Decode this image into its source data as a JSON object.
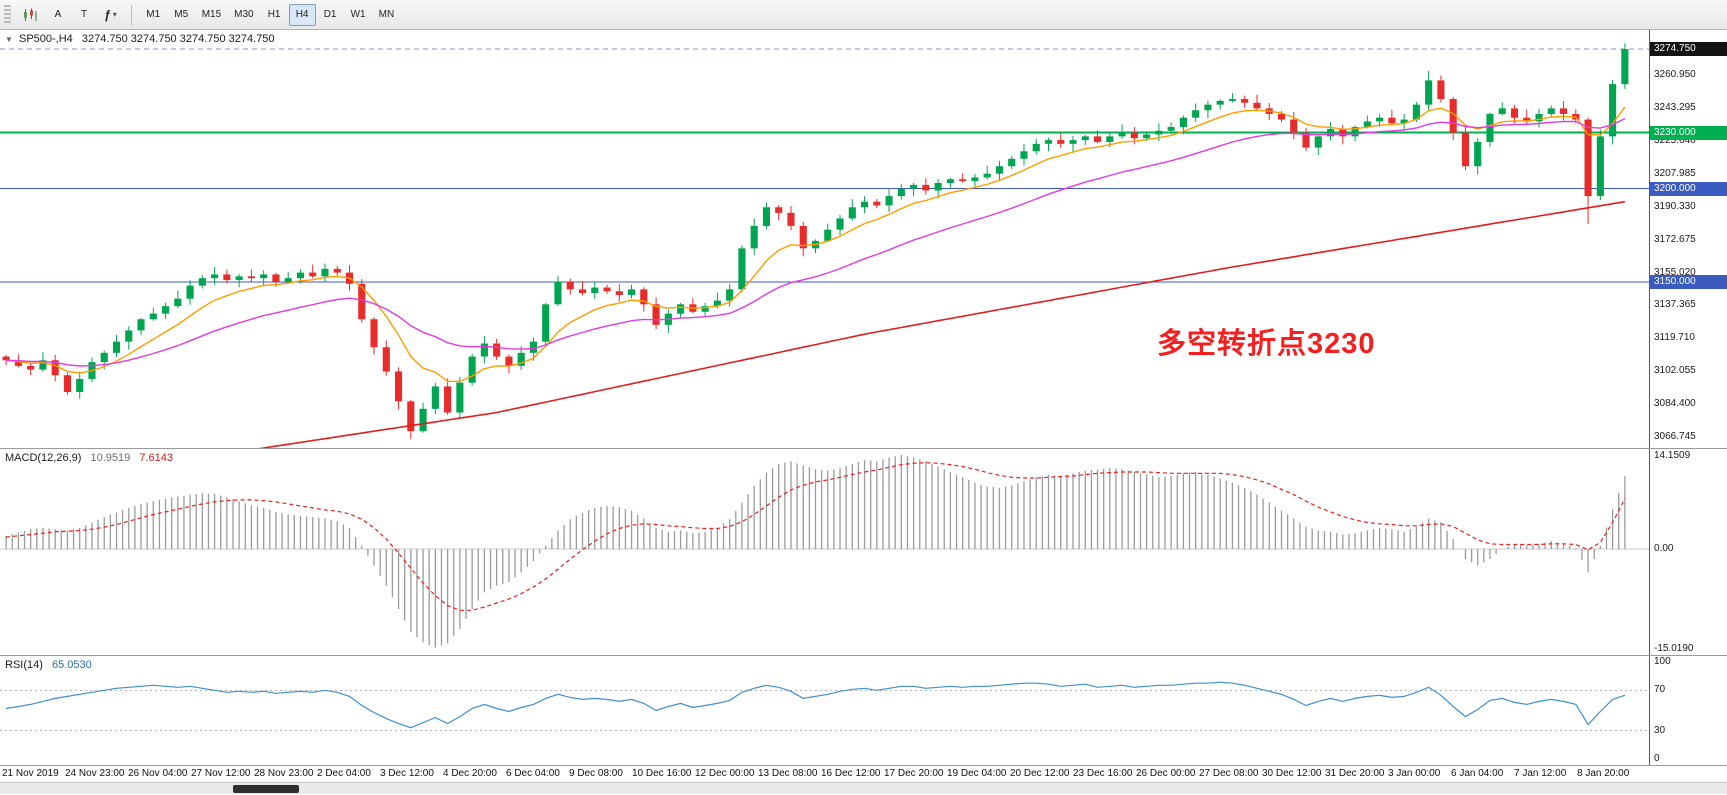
{
  "toolbar": {
    "buttons": {
      "a_tool": "A",
      "t_tool": "T",
      "indicators_glyph": "ƒ",
      "dropdown_glyph": "▾"
    },
    "timeframes": [
      "M1",
      "M5",
      "M15",
      "M30",
      "H1",
      "H4",
      "D1",
      "W1",
      "MN"
    ],
    "active_timeframe": "H4"
  },
  "header": {
    "collapse_glyph": "▼",
    "symbol": "SP500-,H4",
    "ohlc": "3274.750 3274.750 3274.750 3274.750"
  },
  "annotation": {
    "text": "多空转折点3230",
    "color": "#f22020"
  },
  "price_axis": {
    "ticks": [
      "3260.950",
      "3243.295",
      "3225.640",
      "3207.985",
      "3190.330",
      "3172.675",
      "3155.020",
      "3137.365",
      "3119.710",
      "3102.055",
      "3084.400",
      "3066.745"
    ],
    "tags": [
      {
        "label": "3274.750",
        "value": 3274.75,
        "bg": "#141414",
        "line": "#7c97b8",
        "dash": true,
        "width": 1
      },
      {
        "label": "3230.000",
        "value": 3230,
        "bg": "#00b050",
        "line": "#00b050",
        "dash": false,
        "width": 2
      },
      {
        "label": "3200.000",
        "value": 3200,
        "bg": "#3c5bc0",
        "line": "#3c5bc0",
        "dash": false,
        "width": 1
      },
      {
        "label": "3150.000",
        "value": 3150,
        "bg": "#3c5bc0",
        "line": "#3c5bc0",
        "dash": false,
        "width": 1
      }
    ]
  },
  "macd_panel": {
    "name": "MACD(12,26,9)",
    "value_main": "10.9519",
    "value_signal": "7.6143",
    "axis": [
      {
        "label": "14.1509",
        "value": 14.1509
      },
      {
        "label": "0.00",
        "value": 0
      },
      {
        "label": "-15.0190",
        "value": -15.019
      }
    ]
  },
  "rsi_panel": {
    "name": "RSI(14)",
    "value": "65.0530",
    "axis": [
      {
        "label": "100",
        "value": 100
      },
      {
        "label": "70",
        "value": 70
      },
      {
        "label": "30",
        "value": 30
      },
      {
        "label": "0",
        "value": 0
      }
    ],
    "levels": [
      70,
      30
    ]
  },
  "time_axis": [
    "21 Nov 2019",
    "24 Nov 23:00",
    "26 Nov 04:00",
    "27 Nov 12:00",
    "28 Nov 23:00",
    "2 Dec 04:00",
    "3 Dec 12:00",
    "4 Dec 20:00",
    "6 Dec 04:00",
    "9 Dec 08:00",
    "10 Dec 16:00",
    "12 Dec 00:00",
    "13 Dec 08:00",
    "16 Dec 12:00",
    "17 Dec 20:00",
    "19 Dec 04:00",
    "20 Dec 12:00",
    "23 Dec 16:00",
    "26 Dec 00:00",
    "27 Dec 08:00",
    "30 Dec 12:00",
    "31 Dec 20:00",
    "3 Jan 00:00",
    "6 Jan 04:00",
    "7 Jan 12:00",
    "8 Jan 20:00"
  ],
  "scrollbar": {
    "thumb_left": 233,
    "thumb_width": 66
  },
  "chart_data": [
    {
      "type": "candlestick",
      "name": "SP500- H4 price",
      "ylim": [
        3061,
        3285
      ],
      "first_open": 3110,
      "closes": [
        3108,
        3105,
        3103,
        3108,
        3100,
        3091,
        3098,
        3107,
        3112,
        3118,
        3124,
        3130,
        3133,
        3137,
        3141,
        3148,
        3152,
        3154,
        3151,
        3153,
        3152,
        3154,
        3150,
        3152,
        3155,
        3153,
        3157,
        3155,
        3149,
        3130,
        3115,
        3102,
        3086,
        3070,
        3082,
        3094,
        3080,
        3096,
        3110,
        3117,
        3110,
        3105,
        3112,
        3118,
        3138,
        3150,
        3146,
        3144,
        3147,
        3145,
        3143,
        3146,
        3138,
        3127,
        3133,
        3138,
        3134,
        3137,
        3140,
        3146,
        3168,
        3180,
        3190,
        3187,
        3180,
        3168,
        3172,
        3178,
        3184,
        3190,
        3193,
        3191,
        3196,
        3200,
        3202,
        3199,
        3203,
        3205,
        3204,
        3206,
        3208,
        3212,
        3216,
        3220,
        3224,
        3226,
        3224,
        3226,
        3228,
        3225,
        3228,
        3230,
        3227,
        3229,
        3231,
        3233,
        3238,
        3242,
        3245,
        3247,
        3248,
        3246,
        3243,
        3240,
        3237,
        3230,
        3222,
        3228,
        3232,
        3228,
        3233,
        3236,
        3238,
        3235,
        3237,
        3245,
        3258,
        3248,
        3230,
        3212,
        3225,
        3240,
        3243,
        3238,
        3236,
        3240,
        3243,
        3240,
        3237,
        3196,
        3228,
        3256,
        3274.75
      ],
      "low_overrides": {
        "33": 3065.7,
        "129": 3181
      },
      "high_overrides": {
        "116": 3263,
        "132": 3277.8
      },
      "up_color": "#00a551",
      "down_color": "#e82b2b",
      "ma_fast": {
        "color": "#ff9d00",
        "period": 8
      },
      "ma_mid": {
        "color": "#e03ce0",
        "period": 24
      },
      "ma_slow": {
        "color": "#dd1f1f",
        "points": [
          [
            16,
            3056
          ],
          [
            40,
            3080
          ],
          [
            70,
            3122
          ],
          [
            100,
            3158
          ],
          [
            132,
            3193
          ]
        ]
      },
      "levels": [
        3230,
        3200,
        3150
      ],
      "current_price": 3274.75
    },
    {
      "type": "bar",
      "name": "MACD(12,26,9)",
      "ylim": [
        -15.019,
        14.1509
      ],
      "hist": [
        2.0,
        2.5,
        3.0,
        3.2,
        3.0,
        2.8,
        3.2,
        4.0,
        4.8,
        5.5,
        6.2,
        6.8,
        7.2,
        7.6,
        7.9,
        8.2,
        8.4,
        8.3,
        7.8,
        7.2,
        6.6,
        6.2,
        5.6,
        5.2,
        5.0,
        4.8,
        4.6,
        4.2,
        3.2,
        0.5,
        -2.5,
        -5.5,
        -9.0,
        -12.5,
        -14.0,
        -14.8,
        -14.2,
        -12.0,
        -9.0,
        -6.5,
        -5.5,
        -5.0,
        -3.5,
        -1.8,
        0.5,
        2.8,
        4.5,
        5.5,
        6.2,
        6.5,
        6.3,
        5.8,
        4.6,
        3.2,
        2.6,
        2.8,
        2.4,
        2.6,
        3.2,
        4.5,
        7.0,
        9.5,
        11.5,
        12.8,
        13.2,
        12.6,
        12.0,
        11.8,
        12.2,
        12.8,
        13.4,
        13.2,
        13.8,
        14.15,
        13.8,
        13.2,
        12.4,
        11.6,
        10.8,
        10.0,
        9.4,
        9.2,
        9.6,
        10.2,
        10.8,
        11.2,
        11.0,
        11.4,
        11.8,
        12.0,
        12.2,
        12.0,
        11.6,
        11.2,
        10.8,
        11.0,
        11.4,
        11.6,
        11.2,
        10.6,
        10.0,
        9.2,
        8.2,
        7.0,
        5.8,
        4.6,
        3.4,
        2.8,
        2.6,
        2.2,
        2.4,
        2.8,
        3.2,
        3.0,
        2.6,
        3.4,
        4.6,
        4.0,
        1.5,
        -1.5,
        -2.5,
        -1.5,
        0.0,
        0.8,
        0.6,
        0.8,
        1.2,
        0.8,
        0.2,
        -3.5,
        0.5,
        6.0,
        10.95
      ],
      "signal": [
        1.8,
        2.0,
        2.2,
        2.4,
        2.6,
        2.7,
        2.8,
        3.0,
        3.3,
        3.7,
        4.2,
        4.7,
        5.2,
        5.6,
        6.0,
        6.4,
        6.8,
        7.1,
        7.3,
        7.4,
        7.4,
        7.3,
        7.1,
        6.8,
        6.5,
        6.2,
        5.9,
        5.7,
        5.3,
        4.5,
        3.2,
        1.5,
        -0.6,
        -2.9,
        -5.1,
        -7.0,
        -8.5,
        -9.2,
        -9.2,
        -8.7,
        -8.1,
        -7.5,
        -6.7,
        -5.7,
        -4.5,
        -3.0,
        -1.5,
        -0.1,
        1.2,
        2.3,
        3.1,
        3.6,
        3.8,
        3.7,
        3.5,
        3.4,
        3.2,
        3.1,
        3.1,
        3.4,
        4.1,
        5.2,
        6.5,
        7.8,
        8.9,
        9.6,
        10.1,
        10.4,
        10.8,
        11.2,
        11.6,
        11.9,
        12.3,
        12.7,
        12.9,
        13.0,
        12.9,
        12.7,
        12.4,
        12.0,
        11.5,
        11.1,
        10.8,
        10.7,
        10.7,
        10.8,
        10.9,
        11.0,
        11.2,
        11.4,
        11.5,
        11.6,
        11.6,
        11.6,
        11.5,
        11.4,
        11.4,
        11.4,
        11.4,
        11.4,
        11.2,
        10.9,
        10.4,
        9.8,
        9.0,
        8.2,
        7.2,
        6.3,
        5.6,
        4.9,
        4.4,
        4.0,
        3.8,
        3.7,
        3.5,
        3.5,
        3.7,
        3.8,
        3.4,
        2.4,
        1.4,
        0.8,
        0.7,
        0.7,
        0.7,
        0.7,
        0.8,
        0.8,
        0.7,
        -0.1,
        1.0,
        4.0,
        7.61
      ],
      "hist_color": "#9b9b9b",
      "signal_color": "#e62020"
    },
    {
      "type": "line",
      "name": "RSI(14)",
      "ylim": [
        0,
        100
      ],
      "values": [
        52,
        54,
        56,
        59,
        62,
        64,
        66,
        68,
        70,
        72,
        73,
        74,
        75,
        74,
        73,
        74,
        72,
        70,
        68,
        69,
        68,
        69,
        67,
        68,
        69,
        68,
        70,
        68,
        64,
        55,
        48,
        42,
        37,
        33,
        38,
        43,
        37,
        44,
        52,
        56,
        52,
        49,
        53,
        56,
        62,
        66,
        63,
        61,
        62,
        61,
        59,
        61,
        57,
        50,
        54,
        57,
        53,
        55,
        57,
        60,
        68,
        72,
        75,
        73,
        69,
        62,
        64,
        66,
        69,
        71,
        72,
        70,
        72,
        74,
        74,
        72,
        73,
        74,
        73,
        74,
        74,
        75,
        76,
        77,
        77,
        76,
        74,
        75,
        76,
        73,
        74,
        75,
        73,
        74,
        75,
        75,
        76,
        77,
        77,
        78,
        77,
        75,
        72,
        69,
        66,
        61,
        55,
        59,
        62,
        59,
        62,
        64,
        65,
        63,
        64,
        68,
        73,
        65,
        54,
        44,
        51,
        60,
        62,
        58,
        56,
        59,
        61,
        59,
        56,
        36,
        49,
        61,
        65.05
      ],
      "line_color": "#3f8fd2",
      "level_color": "#b4b4b4"
    }
  ]
}
